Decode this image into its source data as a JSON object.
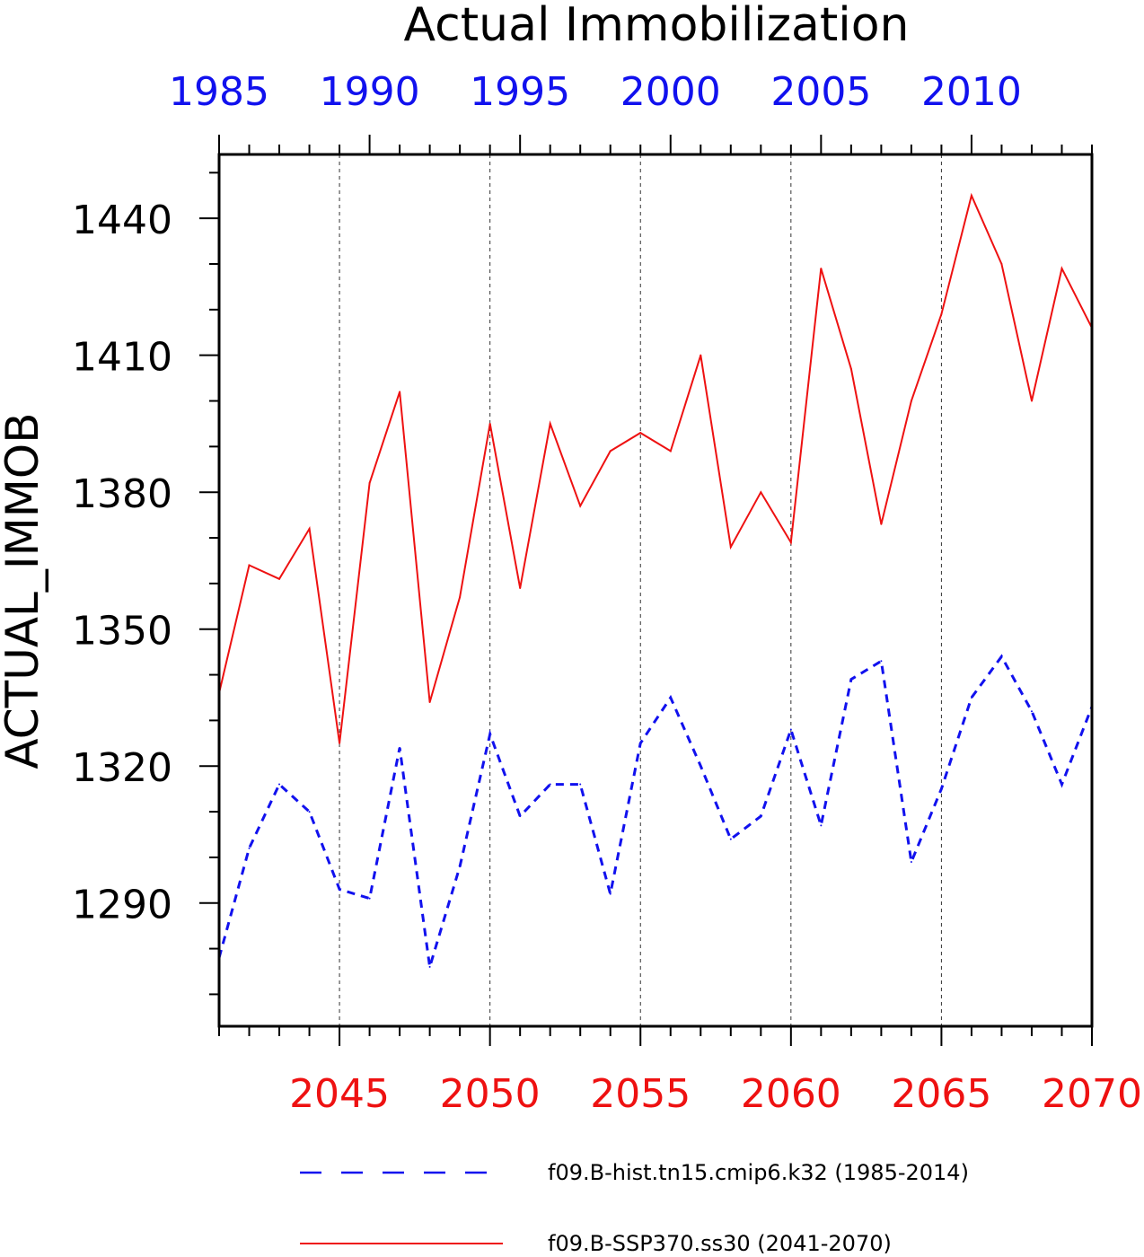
{
  "chart_data": {
    "type": "line",
    "title": "Actual Immobilization",
    "ylabel": "ACTUAL_IMMOB",
    "ylim": [
      1263,
      1454
    ],
    "yticks": [
      1290,
      1320,
      1350,
      1380,
      1410,
      1440
    ],
    "y_minor_step": 10,
    "bottom_axis": {
      "range": [
        2041,
        2070
      ],
      "ticks": [
        2045,
        2050,
        2055,
        2060,
        2065,
        2070
      ],
      "color": "#ee1111"
    },
    "top_axis": {
      "range": [
        1985,
        2014
      ],
      "ticks": [
        1985,
        1990,
        1995,
        2000,
        2005,
        2010
      ],
      "color": "#1111ee"
    },
    "grid": "vertical-dashed",
    "legend_position": "bottom",
    "series": [
      {
        "name": "f09.B-hist.tn15.cmip6.k32 (1985-2014)",
        "color": "#1111ee",
        "style": "dashed",
        "x": [
          1985,
          1986,
          1987,
          1988,
          1989,
          1990,
          1991,
          1992,
          1993,
          1994,
          1995,
          1996,
          1997,
          1998,
          1999,
          2000,
          2001,
          2002,
          2003,
          2004,
          2005,
          2006,
          2007,
          2008,
          2009,
          2010,
          2011,
          2012,
          2013,
          2014
        ],
        "values": [
          1278,
          1302,
          1316,
          1310,
          1293,
          1291,
          1324,
          1276,
          1298,
          1327,
          1309,
          1316,
          1316,
          1292,
          1325,
          1335,
          1320,
          1304,
          1309,
          1328,
          1307,
          1339,
          1343,
          1299,
          1315,
          1335,
          1344,
          1332,
          1316,
          1333
        ]
      },
      {
        "name": "f09.B-SSP370.ss30 (2041-2070)",
        "color": "#ee1111",
        "style": "solid",
        "x": [
          2041,
          2042,
          2043,
          2044,
          2045,
          2046,
          2047,
          2048,
          2049,
          2050,
          2051,
          2052,
          2053,
          2054,
          2055,
          2056,
          2057,
          2058,
          2059,
          2060,
          2061,
          2062,
          2063,
          2064,
          2065,
          2066,
          2067,
          2068,
          2069,
          2070
        ],
        "values": [
          1336,
          1364,
          1361,
          1372,
          1325,
          1382,
          1402,
          1334,
          1357,
          1395,
          1359,
          1395,
          1377,
          1389,
          1393,
          1389,
          1410,
          1368,
          1380,
          1369,
          1429,
          1407,
          1373,
          1400,
          1419,
          1445,
          1430,
          1400,
          1429,
          1416
        ]
      }
    ]
  }
}
